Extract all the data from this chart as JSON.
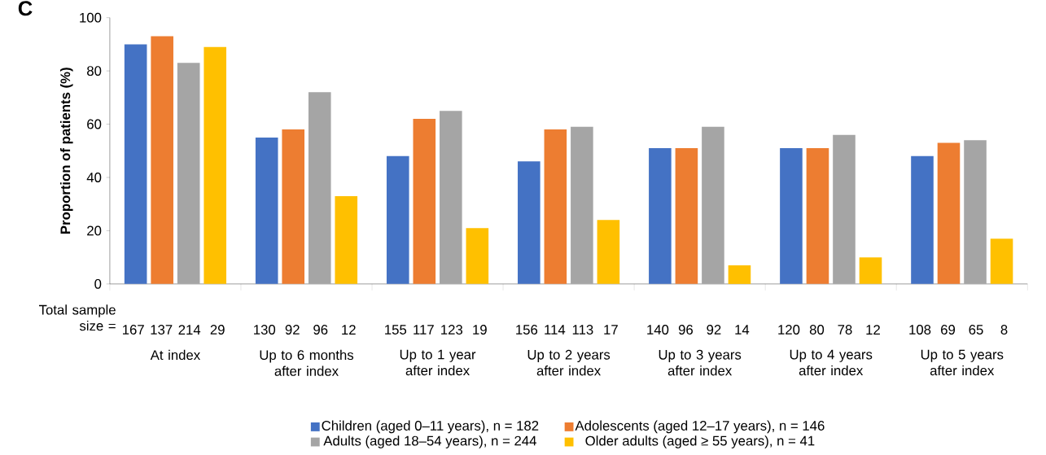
{
  "chart_data": {
    "type": "bar",
    "title": "C",
    "ylabel": "Proportion of patients (%)",
    "categories": [
      "At index",
      "Up to 6 months after index",
      "Up to 1 year after index",
      "Up to 2 years after index",
      "Up to 3 years after index",
      "Up to 4 years after index",
      "Up to 5 years after index"
    ],
    "series": [
      {
        "name": "Children (aged 0–11 years), n = 182",
        "color": "#4472c4",
        "values": [
          90,
          55,
          48,
          46,
          51,
          51,
          48
        ]
      },
      {
        "name": "Adolescents (aged 12–17 years), n = 146",
        "color": "#ed7d31",
        "values": [
          93,
          58,
          62,
          58,
          51,
          51,
          53
        ]
      },
      {
        "name": "Adults (aged 18–54 years), n = 244",
        "color": "#a5a5a5",
        "values": [
          83,
          72,
          65,
          59,
          59,
          56,
          54
        ]
      },
      {
        "name": "Older adults (aged ≥ 55 years), n = 41",
        "color": "#ffc000",
        "values": [
          89,
          33,
          21,
          24,
          7,
          10,
          17
        ]
      }
    ],
    "ylim": [
      0,
      100
    ],
    "yticks": [
      0,
      20,
      40,
      60,
      80,
      100
    ],
    "legend": "bottom",
    "annotations": [
      "Total sample size =",
      "167",
      "137",
      "214",
      "29",
      "130",
      "92",
      "96",
      "12",
      "155",
      "117",
      "123",
      "19",
      "156",
      "114",
      "113",
      "17",
      "140",
      "96",
      "92",
      "14",
      "120",
      "80",
      "78",
      "12",
      "108",
      "69",
      "65",
      "8"
    ]
  }
}
